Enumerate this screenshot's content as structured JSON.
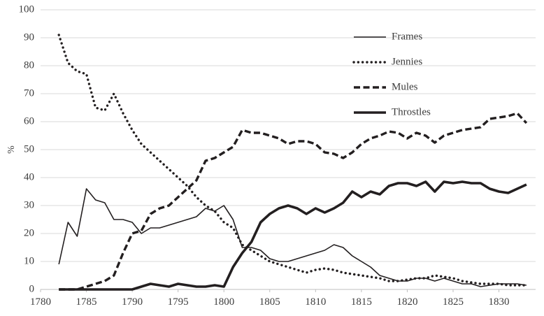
{
  "chart_data": {
    "type": "line",
    "title": "",
    "xlabel": "",
    "ylabel": "%",
    "grid": true,
    "legend_position": "upper-center-right",
    "xlim": [
      1780,
      1834
    ],
    "ylim": [
      0,
      100
    ],
    "x_ticks": [
      1780,
      1785,
      1790,
      1795,
      1800,
      1805,
      1810,
      1815,
      1820,
      1825,
      1830
    ],
    "y_ticks": [
      0,
      10,
      20,
      30,
      40,
      50,
      60,
      70,
      80,
      90,
      100
    ],
    "x_start": 1782,
    "x_step": 1,
    "series": [
      {
        "name": "Frames",
        "style": "thin-solid",
        "values": [
          9,
          24,
          19,
          36,
          32,
          31,
          25,
          25,
          24,
          20,
          22,
          22,
          23,
          24,
          25,
          26,
          29,
          28,
          30,
          25,
          15,
          15,
          14,
          11,
          10,
          10,
          11,
          12,
          13,
          14,
          16,
          15,
          12,
          10,
          8,
          5,
          4,
          3,
          3,
          4,
          4,
          3,
          4,
          3,
          2,
          2,
          1,
          1.5,
          2,
          2,
          2,
          1.5
        ]
      },
      {
        "name": "Jennies",
        "style": "dotted",
        "values": [
          91,
          81,
          78,
          77,
          65,
          64,
          70,
          63,
          57,
          52,
          49,
          46,
          43,
          40,
          37,
          33,
          30,
          28,
          24,
          22,
          16,
          14,
          12,
          10,
          9,
          8,
          7,
          6,
          7,
          7.5,
          7,
          6,
          5.5,
          5,
          4.5,
          4,
          3,
          3,
          3.5,
          4,
          4,
          5,
          4.5,
          4,
          3,
          2.5,
          2,
          2,
          2,
          1.5,
          1.5,
          1.5
        ]
      },
      {
        "name": "Mules",
        "style": "dashed",
        "values": [
          0,
          0,
          0,
          1,
          2,
          3,
          5,
          13,
          20,
          21,
          27,
          29,
          30,
          33,
          36,
          39,
          46,
          47,
          49,
          51,
          57,
          56,
          56,
          55,
          54,
          52,
          53,
          53,
          52,
          49,
          48.5,
          47,
          49,
          52,
          54,
          55,
          56.5,
          56,
          54,
          56,
          55,
          52.5,
          55,
          56,
          57,
          57.5,
          58,
          61,
          61.5,
          62,
          63,
          59.5
        ]
      },
      {
        "name": "Throstles",
        "style": "thick-solid",
        "values": [
          0,
          0,
          0,
          0,
          0,
          0,
          0,
          0,
          0,
          1,
          2,
          1.5,
          1,
          2,
          1.5,
          1,
          1,
          1.5,
          1,
          8,
          13,
          17,
          24,
          27,
          29,
          30,
          29,
          27,
          29,
          27.5,
          29,
          31,
          35,
          33,
          35,
          34,
          37,
          38,
          38,
          37,
          38.5,
          35,
          38.5,
          38,
          38.5,
          38,
          38,
          36,
          35,
          34.5,
          36,
          37.5
        ]
      }
    ]
  },
  "colors": {
    "line": "#231f20",
    "grid": "#d9d9d9",
    "axis": "#bfbfbf",
    "text": "#3d3d3d"
  }
}
